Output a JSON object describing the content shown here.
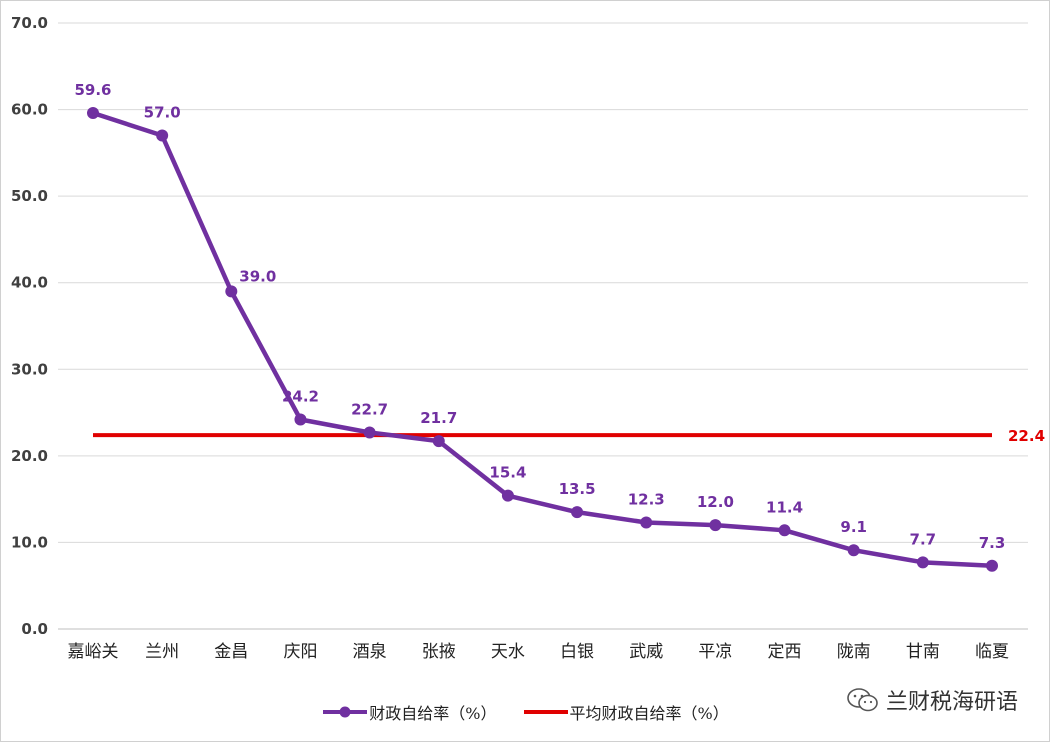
{
  "chart_data": {
    "type": "line",
    "categories": [
      "嘉峪关",
      "兰州",
      "金昌",
      "庆阳",
      "酒泉",
      "张掖",
      "天水",
      "白银",
      "武威",
      "平凉",
      "定西",
      "陇南",
      "甘南",
      "临夏"
    ],
    "series": [
      {
        "name": "财政自给率（%）",
        "values": [
          59.6,
          57.0,
          39.0,
          24.2,
          22.7,
          21.7,
          15.4,
          13.5,
          12.3,
          12.0,
          11.4,
          9.1,
          7.7,
          7.3
        ],
        "labels": [
          "59.6",
          "57.0",
          "39.0",
          "24.2",
          "22.7",
          "21.7",
          "15.4",
          "13.5",
          "12.3",
          "12.0",
          "11.4",
          "9.1",
          "7.7",
          "7.3"
        ],
        "color": "#7030a0"
      },
      {
        "name": "平均财政自给率（%）",
        "values": [
          22.4,
          22.4,
          22.4,
          22.4,
          22.4,
          22.4,
          22.4,
          22.4,
          22.4,
          22.4,
          22.4,
          22.4,
          22.4,
          22.4
        ],
        "end_label": "22.4",
        "color": "#e00000"
      }
    ],
    "ylim": [
      0,
      70
    ],
    "yticks": [
      "0.0",
      "10.0",
      "20.0",
      "30.0",
      "40.0",
      "50.0",
      "60.0",
      "70.0"
    ],
    "grid": true,
    "legend_position": "bottom"
  },
  "watermark": {
    "text": "兰财税海研语",
    "icon": "wechat-icon"
  }
}
